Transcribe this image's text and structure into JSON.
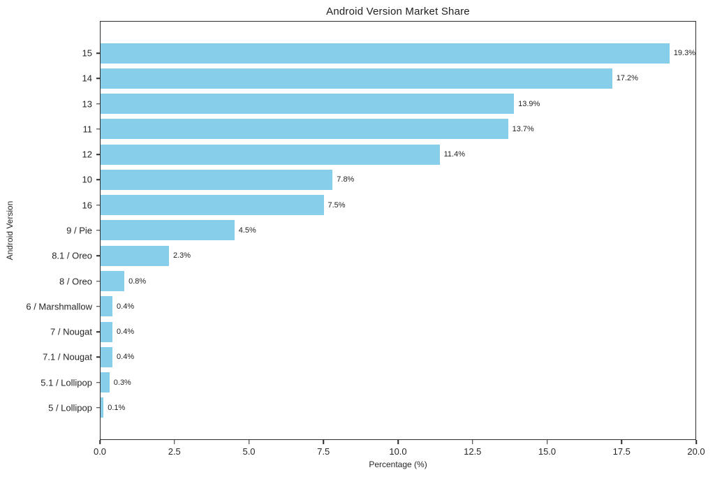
{
  "chart_data": {
    "type": "bar",
    "orientation": "horizontal",
    "title": "Android Version Market Share",
    "xlabel": "Percentage (%)",
    "ylabel": "Android Version",
    "xlim": [
      0,
      20
    ],
    "grid": false,
    "legend": "none",
    "categories": [
      "15",
      "14",
      "13",
      "11",
      "12",
      "10",
      "16",
      "9 / Pie",
      "8.1 / Oreo",
      "8 / Oreo",
      "6 / Marshmallow",
      "7 / Nougat",
      "7.1 / Nougat",
      "5.1 / Lollipop",
      "5 / Lollipop"
    ],
    "values": [
      19.3,
      17.2,
      13.9,
      13.7,
      11.4,
      7.8,
      7.5,
      4.5,
      2.3,
      0.8,
      0.4,
      0.4,
      0.4,
      0.3,
      0.1
    ],
    "value_labels": [
      "19.3%",
      "17.2%",
      "13.9%",
      "13.7%",
      "11.4%",
      "7.8%",
      "7.5%",
      "4.5%",
      "2.3%",
      "0.8%",
      "0.4%",
      "0.4%",
      "0.4%",
      "0.3%",
      "0.1%"
    ],
    "xtick_values": [
      0,
      2.5,
      5,
      7.5,
      10,
      12.5,
      15,
      17.5,
      20
    ],
    "xtick_labels": [
      "0.0",
      "2.5",
      "5.0",
      "7.5",
      "10.0",
      "12.5",
      "15.0",
      "17.5",
      "20.0"
    ],
    "bar_color": "#87CEEB",
    "axis_color": "#2b2b2b",
    "text_color": "#262626"
  }
}
